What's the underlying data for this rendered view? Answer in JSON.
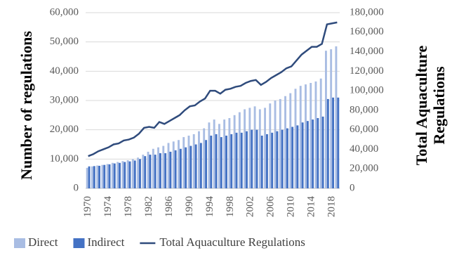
{
  "chart_data": {
    "type": "bar",
    "ylabel": "Number of  regulations",
    "y2label": [
      "Total Aquaculture",
      "Regulations"
    ],
    "categories": [
      "1970",
      null,
      null,
      null,
      "1974",
      null,
      null,
      null,
      "1978",
      null,
      null,
      null,
      "1982",
      null,
      null,
      null,
      "1986",
      null,
      null,
      null,
      "1990",
      null,
      null,
      null,
      "1994",
      null,
      null,
      null,
      "1998",
      null,
      null,
      null,
      "2002",
      null,
      null,
      null,
      "2006",
      null,
      null,
      null,
      "2010",
      null,
      null,
      null,
      "2014",
      null,
      null,
      null,
      "2018",
      null
    ],
    "series": [
      {
        "name": "Direct",
        "type": "bar",
        "color": "#a9bde3",
        "values": [
          7000,
          7500,
          7800,
          8000,
          8300,
          8700,
          9000,
          9300,
          9600,
          10000,
          10500,
          11500,
          12500,
          13500,
          14000,
          14500,
          15500,
          16000,
          16500,
          17500,
          18000,
          18500,
          19500,
          20500,
          22500,
          23500,
          22000,
          23500,
          24000,
          25000,
          26000,
          27000,
          27500,
          28000,
          27000,
          27500,
          29000,
          30000,
          30500,
          31500,
          32500,
          34000,
          35000,
          35500,
          36000,
          36500,
          37500,
          47000,
          47500,
          48500
        ]
      },
      {
        "name": "Indirect",
        "type": "bar",
        "color": "#4472c4",
        "values": [
          7500,
          7600,
          7700,
          8000,
          8200,
          8500,
          8700,
          9000,
          9200,
          9500,
          10000,
          11000,
          11500,
          11500,
          12000,
          12000,
          12500,
          13000,
          13500,
          14000,
          14500,
          15000,
          15500,
          16500,
          18000,
          18500,
          17500,
          18000,
          18500,
          19000,
          19000,
          19500,
          20000,
          20000,
          18000,
          18500,
          19000,
          19500,
          20000,
          20500,
          21000,
          21500,
          22500,
          23000,
          23500,
          24000,
          24500,
          30500,
          31000,
          31000
        ]
      },
      {
        "name": "Total Aquaculture Regulations",
        "type": "line",
        "axis": "y2",
        "color": "#2f4b7c",
        "values": [
          33000,
          35000,
          38000,
          40000,
          42000,
          45000,
          46000,
          49000,
          50000,
          52000,
          56000,
          62000,
          63000,
          62000,
          68000,
          66000,
          69000,
          72000,
          75000,
          80000,
          84000,
          85000,
          89000,
          92000,
          100000,
          100000,
          97000,
          101000,
          102000,
          104000,
          105000,
          108000,
          110000,
          111000,
          106000,
          109000,
          113000,
          116000,
          119000,
          123000,
          125000,
          131000,
          137000,
          141000,
          145000,
          145000,
          148000,
          168000,
          169000,
          170000
        ]
      }
    ],
    "ylim": [
      0,
      60000
    ],
    "yticks": [
      0,
      {
        "value": 10000,
        "label": "10,000"
      },
      {
        "value": 20000,
        "label": "20,000"
      },
      {
        "value": 30000,
        "label": "30,000"
      },
      {
        "value": 40000,
        "label": "40,000"
      },
      {
        "value": 50000,
        "label": "50,000"
      },
      {
        "value": 60000,
        "label": "60,000"
      }
    ],
    "y2lim": [
      0,
      180000
    ],
    "y2ticks": [
      0,
      {
        "value": 20000,
        "label": "20,000"
      },
      {
        "value": 40000,
        "label": "40,000"
      },
      {
        "value": 60000,
        "label": "60,000"
      },
      {
        "value": 80000,
        "label": "80,000"
      },
      {
        "value": 100000,
        "label": "100,000"
      },
      {
        "value": 120000,
        "label": "120,000"
      },
      {
        "value": 140000,
        "label": "140,000"
      },
      {
        "value": 160000,
        "label": "160,000"
      },
      {
        "value": 180000,
        "label": "180,000"
      }
    ],
    "grid": true,
    "legend": "bottom"
  }
}
